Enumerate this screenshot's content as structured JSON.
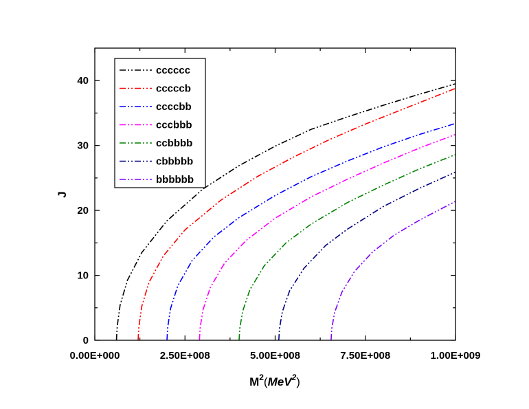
{
  "chart_data": {
    "type": "line",
    "title": "",
    "xlabel": {
      "base": "M",
      "base_sup": "2",
      "unit_open": "(",
      "unit": "MeV",
      "unit_sup": "2",
      "unit_close": ")"
    },
    "ylabel": "J",
    "xlim": [
      0,
      1000000000
    ],
    "ylim": [
      0,
      45
    ],
    "x_ticks": [
      0,
      250000000,
      500000000,
      750000000,
      1000000000
    ],
    "x_tick_labels": [
      "0.00E+000",
      "2.50E+008",
      "5.00E+008",
      "7.50E+008",
      "1.00E+009"
    ],
    "y_ticks": [
      0,
      10,
      20,
      30,
      40
    ],
    "y_tick_labels": [
      "0",
      "10",
      "20",
      "30",
      "40"
    ],
    "grid": false,
    "legend_position": "top-left",
    "line_style": "dash-dot-dot",
    "series": [
      {
        "name": "cccccc",
        "color": "#000000",
        "x": [
          60000000,
          62000000,
          70000000,
          90000000,
          130000000,
          200000000,
          300000000,
          400000000,
          500000000,
          600000000,
          700000000,
          800000000,
          900000000,
          1000000000
        ],
        "y": [
          0,
          2.1,
          5.4,
          9.2,
          13.5,
          18.4,
          23.3,
          26.9,
          29.9,
          32.5,
          34.4,
          36.2,
          37.9,
          39.5
        ]
      },
      {
        "name": "cccccb",
        "color": "#ff0000",
        "x": [
          120000000,
          122000000,
          130000000,
          150000000,
          190000000,
          250000000,
          350000000,
          450000000,
          550000000,
          650000000,
          750000000,
          850000000,
          1000000000
        ],
        "y": [
          0,
          2.0,
          5.2,
          8.9,
          13.0,
          17.0,
          21.6,
          25.2,
          28.2,
          30.9,
          33.3,
          35.5,
          38.8
        ]
      },
      {
        "name": "ccccbb",
        "color": "#0000ff",
        "x": [
          200000000,
          202000000,
          210000000,
          230000000,
          270000000,
          330000000,
          400000000,
          500000000,
          600000000,
          700000000,
          800000000,
          900000000,
          1000000000
        ],
        "y": [
          0,
          2.0,
          4.9,
          8.4,
          12.3,
          15.9,
          18.9,
          22.3,
          25.2,
          27.6,
          29.8,
          31.7,
          33.4
        ]
      },
      {
        "name": "cccbbb",
        "color": "#ff00ff",
        "x": [
          290000000,
          292000000,
          300000000,
          320000000,
          360000000,
          420000000,
          500000000,
          600000000,
          700000000,
          800000000,
          900000000,
          1000000000
        ],
        "y": [
          0,
          1.9,
          4.7,
          8.1,
          11.9,
          15.4,
          18.8,
          22.1,
          24.8,
          27.3,
          29.6,
          31.7
        ]
      },
      {
        "name": "ccbbbb",
        "color": "#008000",
        "x": [
          400000000,
          402000000,
          410000000,
          430000000,
          470000000,
          530000000,
          600000000,
          700000000,
          800000000,
          900000000,
          1000000000
        ],
        "y": [
          0,
          1.9,
          4.5,
          7.8,
          11.5,
          15.0,
          17.9,
          21.2,
          23.9,
          26.4,
          28.6
        ]
      },
      {
        "name": "cbbbbb",
        "color": "#000080",
        "x": [
          510000000,
          512000000,
          520000000,
          540000000,
          580000000,
          640000000,
          700000000,
          800000000,
          900000000,
          1000000000
        ],
        "y": [
          0,
          1.8,
          4.4,
          7.6,
          11.1,
          14.6,
          17.1,
          20.6,
          23.4,
          25.9
        ]
      },
      {
        "name": "bbbbbb",
        "color": "#8000ff",
        "x": [
          655000000,
          657000000,
          665000000,
          685000000,
          720000000,
          770000000,
          830000000,
          900000000,
          1000000000
        ],
        "y": [
          0,
          1.8,
          4.3,
          7.4,
          10.6,
          13.6,
          16.2,
          18.5,
          21.4
        ]
      }
    ]
  }
}
